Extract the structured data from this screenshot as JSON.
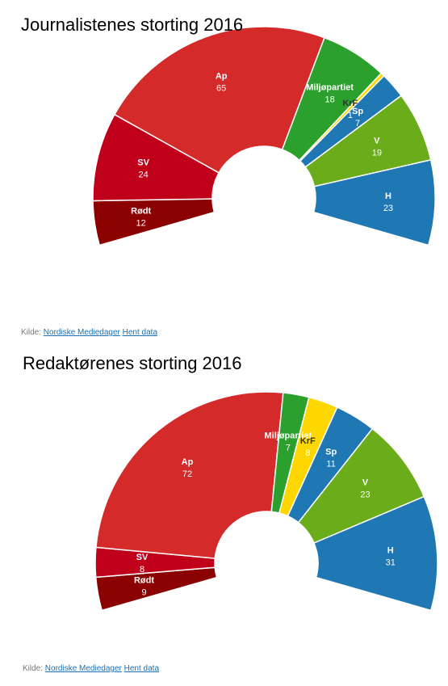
{
  "source_label": "Kilde:",
  "source_link": "Nordiske Mediedager",
  "data_link": "Hent data",
  "chart_data": [
    {
      "type": "parliament-semicircle",
      "title": "Journalistenes storting 2016",
      "series": [
        {
          "name": "Rødt",
          "value": 12,
          "color": "#8b0000"
        },
        {
          "name": "SV",
          "value": 24,
          "color": "#c0001a"
        },
        {
          "name": "Ap",
          "value": 65,
          "color": "#d42a2a"
        },
        {
          "name": "Miljøpartiet",
          "value": 18,
          "color": "#2ca02c"
        },
        {
          "name": "KrF",
          "value": 1,
          "color": "#ffd700"
        },
        {
          "name": "Sp",
          "value": 7,
          "color": "#1f77b4"
        },
        {
          "name": "V",
          "value": 19,
          "color": "#6aac1a"
        },
        {
          "name": "H",
          "value": 23,
          "color": "#1f77b4"
        }
      ]
    },
    {
      "type": "parliament-semicircle",
      "title": "Redaktørenes storting 2016",
      "series": [
        {
          "name": "Rødt",
          "value": 9,
          "color": "#8b0000"
        },
        {
          "name": "SV",
          "value": 8,
          "color": "#c0001a"
        },
        {
          "name": "Ap",
          "value": 72,
          "color": "#d42a2a"
        },
        {
          "name": "Miljøpartiet",
          "value": 7,
          "color": "#2ca02c"
        },
        {
          "name": "KrF",
          "value": 8,
          "color": "#ffd700"
        },
        {
          "name": "Sp",
          "value": 11,
          "color": "#1f77b4"
        },
        {
          "name": "V",
          "value": 23,
          "color": "#6aac1a"
        },
        {
          "name": "H",
          "value": 31,
          "color": "#1f77b4"
        }
      ]
    }
  ]
}
